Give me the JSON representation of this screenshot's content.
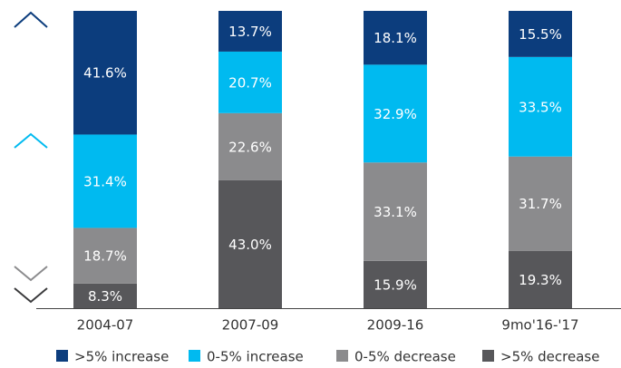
{
  "chart_data": {
    "type": "bar",
    "stacked": true,
    "categories": [
      "2004-07",
      "2007-09",
      "2009-16",
      "9mo'16-'17"
    ],
    "series": [
      {
        "name": ">5% increase",
        "color": "#0c3d7d",
        "values": [
          41.6,
          13.7,
          18.1,
          15.5
        ],
        "value_labels": [
          "41.6%",
          "13.7%",
          "18.1%",
          "15.5%"
        ]
      },
      {
        "name": "0-5% increase",
        "color": "#00baf0",
        "values": [
          31.4,
          20.7,
          32.9,
          33.5
        ],
        "value_labels": [
          "31.4%",
          "20.7%",
          "32.9%",
          "33.5%"
        ]
      },
      {
        "name": "0-5% decrease",
        "color": "#8b8b8d",
        "values": [
          18.7,
          22.6,
          33.1,
          31.7
        ],
        "value_labels": [
          "18.7%",
          "22.6%",
          "33.1%",
          "31.7%"
        ]
      },
      {
        "name": ">5% decrease",
        "color": "#57575a",
        "values": [
          8.3,
          43.0,
          15.9,
          19.3
        ],
        "value_labels": [
          "8.3%",
          "43.0%",
          "15.9%",
          "19.3%"
        ]
      }
    ],
    "legend": "bottom"
  }
}
